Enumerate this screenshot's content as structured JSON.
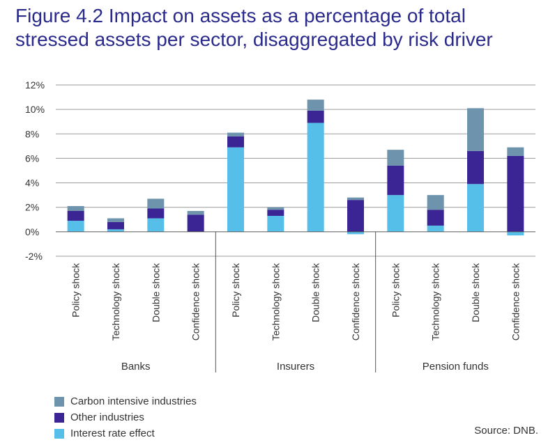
{
  "title": {
    "line1": "Figure 4.2  Impact on assets as a percentage of total",
    "line2": "stressed assets per sector, disaggregated by risk driver"
  },
  "source": "Source: DNB.",
  "colors": {
    "carbon": "#6e93ad",
    "other": "#3b2594",
    "interest": "#56bfe9",
    "grid": "#9a9a9a",
    "axis": "#555555"
  },
  "chart_data": {
    "type": "bar",
    "stacked": true,
    "title": "Figure 4.2  Impact on assets as a percentage of total stressed assets per sector, disaggregated by risk driver",
    "xlabel": "",
    "ylabel": "",
    "ylim": [
      -2,
      12
    ],
    "yticks": [
      -2,
      0,
      2,
      4,
      6,
      8,
      10,
      12
    ],
    "ytick_labels": [
      "-2%",
      "0%",
      "2%",
      "4%",
      "6%",
      "8%",
      "10%",
      "12%"
    ],
    "grid": true,
    "legend_position": "bottom-left",
    "groups": [
      "Banks",
      "Insurers",
      "Pension funds"
    ],
    "categories": [
      "Policy shock",
      "Technology shock",
      "Double shock",
      "Confidence shock",
      "Policy shock",
      "Technology shock",
      "Double shock",
      "Confidence shock",
      "Policy shock",
      "Technology shock",
      "Double shock",
      "Confidence shock"
    ],
    "category_group": [
      0,
      0,
      0,
      0,
      1,
      1,
      1,
      1,
      2,
      2,
      2,
      2
    ],
    "series": [
      {
        "name": "Interest rate effect",
        "key": "interest",
        "values": [
          0.9,
          0.2,
          1.1,
          0.0,
          6.9,
          1.3,
          8.9,
          -0.2,
          3.0,
          0.5,
          3.9,
          -0.3
        ]
      },
      {
        "name": "Other industries",
        "key": "other",
        "values": [
          0.8,
          0.6,
          0.8,
          1.4,
          0.9,
          0.5,
          1.0,
          2.6,
          2.4,
          1.3,
          2.7,
          6.2
        ]
      },
      {
        "name": "Carbon intensive industries",
        "key": "carbon",
        "values": [
          0.4,
          0.3,
          0.8,
          0.3,
          0.3,
          0.2,
          0.9,
          0.2,
          1.3,
          1.2,
          3.5,
          0.7
        ]
      }
    ],
    "legend": [
      "Carbon intensive industries",
      "Other industries",
      "Interest rate effect"
    ]
  }
}
